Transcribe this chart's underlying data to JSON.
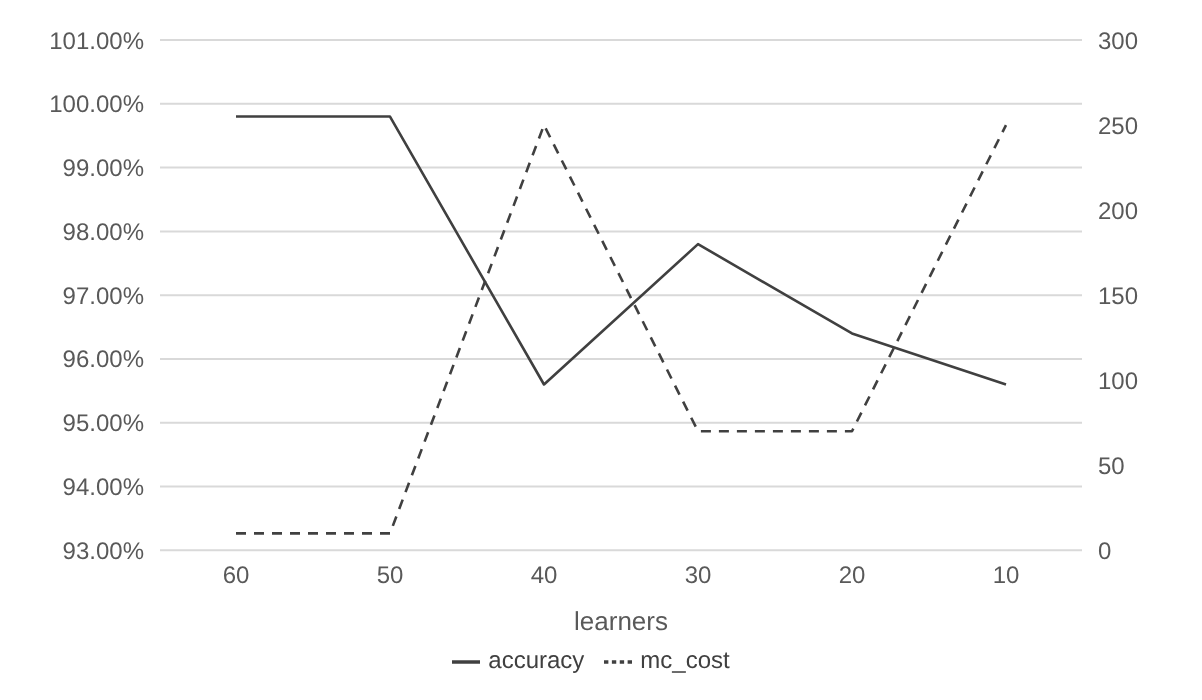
{
  "chart_data": {
    "type": "line",
    "xlabel": "learners",
    "categories": [
      "60",
      "50",
      "40",
      "30",
      "20",
      "10"
    ],
    "series": [
      {
        "name": "accuracy",
        "color": "#404040",
        "values": [
          99.8,
          99.8,
          95.6,
          97.8,
          96.4,
          95.6
        ],
        "line_style": "solid"
      },
      {
        "name": "mc_cost",
        "color": "#404040",
        "values": [
          10,
          10,
          250,
          70,
          70,
          250
        ],
        "axis": "y2",
        "line_style": "dashed"
      }
    ],
    "ylim": [
      93,
      101
    ],
    "yticks": [
      {
        "value": 93,
        "label": "93.00%"
      },
      {
        "value": 94,
        "label": "94.00%"
      },
      {
        "value": 95,
        "label": "95.00%"
      },
      {
        "value": 96,
        "label": "96.00%"
      },
      {
        "value": 97,
        "label": "97.00%"
      },
      {
        "value": 98,
        "label": "98.00%"
      },
      {
        "value": 99,
        "label": "99.00%"
      },
      {
        "value": 100,
        "label": "100.00%"
      },
      {
        "value": 101,
        "label": "101.00%"
      }
    ],
    "y2lim": [
      0,
      300
    ],
    "y2ticks": [
      0,
      50,
      100,
      150,
      200,
      250,
      300
    ],
    "grid": "y",
    "legend": "bottom",
    "marker": "none"
  }
}
